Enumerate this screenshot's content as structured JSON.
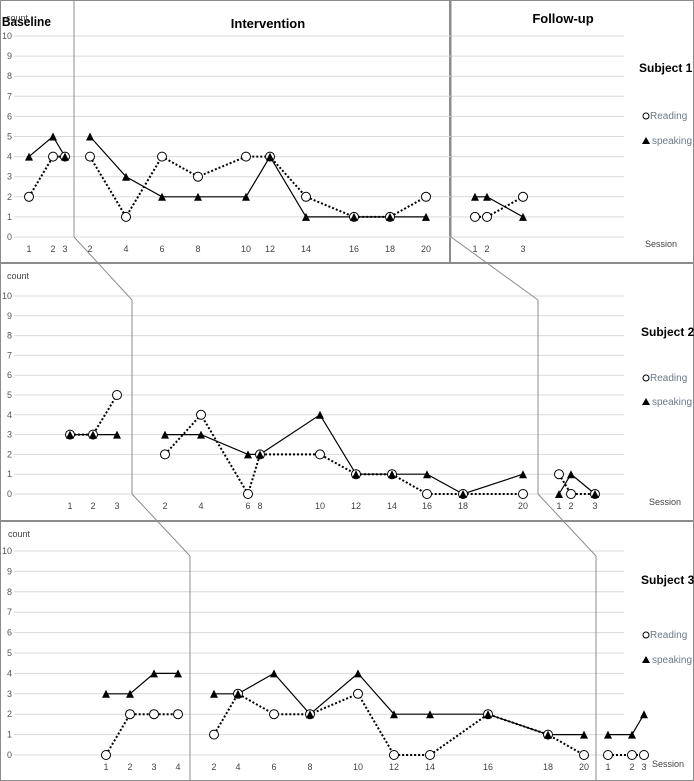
{
  "chart_data": {
    "type": "line",
    "phases": [
      "Baseline",
      "Intervention",
      "Follow-up"
    ],
    "ylabel": "count",
    "xlabel": "Session",
    "ylim": [
      0,
      10
    ],
    "yticks": [
      "0",
      "1",
      "2",
      "3",
      "4",
      "5",
      "6",
      "7",
      "8",
      "9",
      "10"
    ],
    "grid": true,
    "legend_position": "right",
    "series_styles": {
      "reading": {
        "marker": "circle",
        "line": "dotted"
      },
      "speaking": {
        "marker": "triangle",
        "line": "solid"
      }
    },
    "panels": [
      {
        "title": "Subject 1",
        "legend": [
          "Reading",
          "speaking"
        ],
        "phases": [
          {
            "x": [
              "1",
              "2",
              "3"
            ],
            "reading": [
              2,
              4,
              4
            ],
            "speaking": [
              4,
              5,
              4
            ]
          },
          {
            "x": [
              "2",
              "4",
              "6",
              "8",
              "10",
              "12",
              "14",
              "16",
              "18",
              "20"
            ],
            "reading": [
              4,
              1,
              4,
              3,
              4,
              4,
              2,
              1,
              1,
              2
            ],
            "speaking": [
              5,
              3,
              2,
              2,
              2,
              4,
              1,
              1,
              1,
              1
            ]
          },
          {
            "x": [
              "1",
              "2",
              "3"
            ],
            "reading": [
              1,
              1,
              2
            ],
            "speaking": [
              2,
              2,
              1
            ]
          }
        ]
      },
      {
        "title": "Subject 2",
        "legend": [
          "Reading",
          "speaking"
        ],
        "phases": [
          {
            "x": [
              "1",
              "2",
              "3"
            ],
            "reading": [
              3,
              3,
              5
            ],
            "speaking": [
              3,
              3,
              3
            ]
          },
          {
            "x": [
              "2",
              "4",
              "6",
              "8",
              "10",
              "12",
              "14",
              "16",
              "18",
              "20"
            ],
            "reading": [
              2,
              4,
              0,
              2,
              2,
              1,
              1,
              0,
              0,
              0
            ],
            "speaking": [
              3,
              3,
              2,
              2,
              4,
              1,
              1,
              1,
              0,
              1
            ]
          },
          {
            "x": [
              "1",
              "2",
              "3"
            ],
            "reading": [
              1,
              0,
              0
            ],
            "speaking": [
              0,
              1,
              0
            ]
          }
        ]
      },
      {
        "title": "Subject 3",
        "legend": [
          "Reading",
          "speaking"
        ],
        "phases": [
          {
            "x": [
              "1",
              "2",
              "3",
              "4"
            ],
            "reading": [
              0,
              2,
              2,
              2
            ],
            "speaking": [
              3,
              3,
              4,
              4
            ]
          },
          {
            "x": [
              "2",
              "4",
              "6",
              "8",
              "10",
              "12",
              "14",
              "16",
              "18",
              "20"
            ],
            "reading": [
              1,
              3,
              2,
              2,
              3,
              0,
              0,
              2,
              1,
              0
            ],
            "speaking": [
              3,
              3,
              4,
              2,
              4,
              2,
              2,
              2,
              1,
              1
            ]
          },
          {
            "x": [
              "1",
              "2",
              "3"
            ],
            "reading": [
              0,
              0,
              0
            ],
            "speaking": [
              1,
              1,
              2
            ]
          }
        ]
      }
    ]
  }
}
